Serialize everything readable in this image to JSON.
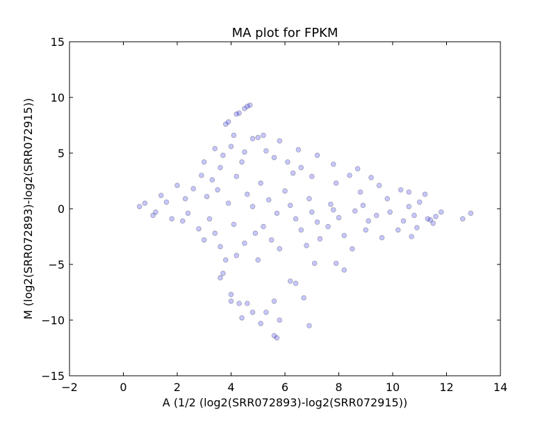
{
  "chart_data": {
    "type": "scatter",
    "title": "MA plot for FPKM",
    "xlabel": "A (1/2 (log2(SRR072893)-log2(SRR072915))",
    "ylabel": "M (log2(SRR072893)-log2(SRR072915))",
    "xlim": [
      -2,
      14
    ],
    "ylim": [
      -15,
      15
    ],
    "xticks": [
      -2,
      0,
      2,
      4,
      6,
      8,
      10,
      12,
      14
    ],
    "yticks": [
      -15,
      -10,
      -5,
      0,
      5,
      10,
      15
    ],
    "xtick_labels": [
      "−2",
      "0",
      "2",
      "4",
      "6",
      "8",
      "10",
      "12",
      "14"
    ],
    "ytick_labels": [
      "−15",
      "−10",
      "−5",
      "0",
      "5",
      "10",
      "15"
    ],
    "grid": false,
    "marker": {
      "color": "#0000ff",
      "edge_color": "#000000",
      "alpha": 0.22
    },
    "series": [
      {
        "points": [
          [
            4.7,
            9.3
          ],
          [
            4.6,
            9.2
          ],
          [
            4.5,
            9.0
          ],
          [
            4.3,
            8.6
          ],
          [
            4.2,
            8.5
          ],
          [
            3.9,
            7.8
          ],
          [
            3.8,
            7.6
          ],
          [
            4.1,
            6.6
          ],
          [
            4.8,
            6.3
          ],
          [
            5.0,
            6.4
          ],
          [
            5.2,
            6.6
          ],
          [
            5.8,
            6.1
          ],
          [
            6.5,
            5.3
          ],
          [
            7.2,
            4.8
          ],
          [
            7.8,
            4.0
          ],
          [
            8.7,
            3.6
          ],
          [
            8.4,
            3.0
          ],
          [
            9.2,
            2.8
          ],
          [
            9.5,
            2.1
          ],
          [
            10.3,
            1.7
          ],
          [
            10.6,
            1.5
          ],
          [
            11.2,
            1.3
          ],
          [
            11.0,
            0.6
          ],
          [
            12.9,
            -0.4
          ],
          [
            12.6,
            -0.9
          ],
          [
            11.6,
            -0.7
          ],
          [
            11.4,
            -1.0
          ],
          [
            10.9,
            -1.7
          ],
          [
            10.7,
            -2.5
          ],
          [
            8.2,
            -2.4
          ],
          [
            8.5,
            -3.6
          ],
          [
            7.9,
            -4.9
          ],
          [
            8.2,
            -5.5
          ],
          [
            7.1,
            -4.9
          ],
          [
            6.2,
            -6.5
          ],
          [
            6.4,
            -6.7
          ],
          [
            6.7,
            -8.0
          ],
          [
            5.6,
            -8.3
          ],
          [
            4.6,
            -8.5
          ],
          [
            4.3,
            -8.5
          ],
          [
            4.0,
            -8.3
          ],
          [
            4.8,
            -9.3
          ],
          [
            5.3,
            -9.3
          ],
          [
            4.4,
            -9.8
          ],
          [
            5.1,
            -10.3
          ],
          [
            5.8,
            -10.0
          ],
          [
            6.9,
            -10.5
          ],
          [
            5.6,
            -11.4
          ],
          [
            5.7,
            -11.6
          ],
          [
            4.0,
            -7.7
          ],
          [
            3.6,
            -6.2
          ],
          [
            3.7,
            -5.8
          ],
          [
            3.8,
            -4.6
          ],
          [
            4.2,
            -4.2
          ],
          [
            5.0,
            -4.6
          ],
          [
            5.8,
            -3.6
          ],
          [
            6.8,
            -3.3
          ],
          [
            7.3,
            -2.7
          ],
          [
            9.6,
            -2.6
          ],
          [
            10.2,
            -1.9
          ],
          [
            9.0,
            -1.9
          ],
          [
            7.6,
            -1.6
          ],
          [
            6.6,
            -1.9
          ],
          [
            5.2,
            -1.6
          ],
          [
            3.4,
            -2.2
          ],
          [
            2.8,
            -1.8
          ],
          [
            2.2,
            -1.1
          ],
          [
            1.2,
            -0.3
          ],
          [
            0.8,
            0.5
          ],
          [
            1.4,
            1.2
          ],
          [
            2.0,
            2.1
          ],
          [
            2.9,
            3.0
          ],
          [
            3.6,
            3.7
          ],
          [
            4.4,
            4.2
          ],
          [
            5.6,
            4.6
          ],
          [
            6.3,
            3.2
          ],
          [
            7.0,
            2.9
          ],
          [
            7.9,
            2.3
          ],
          [
            8.8,
            1.5
          ],
          [
            9.8,
            0.9
          ],
          [
            10.6,
            0.2
          ],
          [
            11.8,
            -0.3
          ],
          [
            11.5,
            -1.3
          ],
          [
            10.4,
            -1.1
          ],
          [
            9.4,
            -0.6
          ],
          [
            8.6,
            -0.2
          ],
          [
            7.7,
            0.4
          ],
          [
            6.9,
            0.9
          ],
          [
            6.0,
            1.6
          ],
          [
            5.1,
            2.3
          ],
          [
            4.2,
            2.9
          ],
          [
            3.3,
            2.6
          ],
          [
            2.6,
            1.8
          ],
          [
            3.1,
            1.1
          ],
          [
            3.9,
            0.5
          ],
          [
            4.8,
            0.2
          ],
          [
            5.7,
            -0.4
          ],
          [
            6.4,
            -0.9
          ],
          [
            7.2,
            -1.2
          ],
          [
            8.0,
            -0.8
          ],
          [
            9.1,
            -1.1
          ],
          [
            2.4,
            -0.4
          ],
          [
            3.2,
            -0.9
          ],
          [
            4.1,
            -1.4
          ],
          [
            4.9,
            -2.2
          ],
          [
            5.5,
            -2.8
          ],
          [
            4.5,
            -3.1
          ],
          [
            3.6,
            -3.4
          ],
          [
            3.0,
            -2.8
          ],
          [
            1.8,
            -0.9
          ],
          [
            1.1,
            -0.6
          ],
          [
            0.6,
            0.2
          ],
          [
            1.6,
            0.6
          ],
          [
            2.3,
            0.9
          ],
          [
            3.5,
            1.7
          ],
          [
            4.6,
            1.3
          ],
          [
            5.4,
            0.8
          ],
          [
            6.2,
            0.3
          ],
          [
            7.0,
            -0.3
          ],
          [
            7.8,
            -0.1
          ],
          [
            8.9,
            0.3
          ],
          [
            9.9,
            -0.3
          ],
          [
            10.8,
            -0.6
          ],
          [
            11.3,
            -0.9
          ],
          [
            3.0,
            4.2
          ],
          [
            3.4,
            5.4
          ],
          [
            3.7,
            4.8
          ],
          [
            4.0,
            5.6
          ],
          [
            4.5,
            5.1
          ],
          [
            5.3,
            5.2
          ],
          [
            6.1,
            4.2
          ],
          [
            6.6,
            3.7
          ]
        ]
      }
    ]
  }
}
